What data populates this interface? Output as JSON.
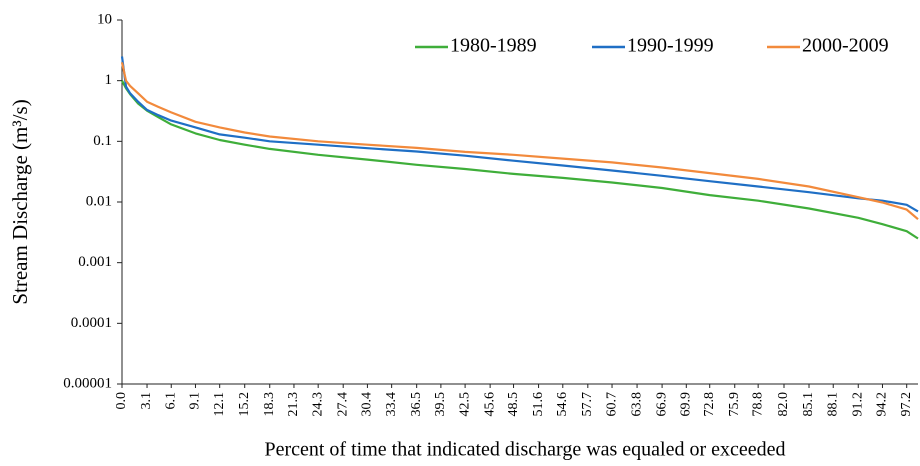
{
  "chart_data": {
    "type": "line",
    "y_label": "Stream Discharge (m³/s)",
    "x_label": "Percent of time that indicated discharge was equaled or exceeded",
    "x": [
      0,
      0.5,
      1,
      2,
      3.1,
      4.5,
      6.1,
      9.1,
      12.1,
      15.2,
      18.3,
      24.3,
      30.4,
      36.5,
      42.5,
      48.5,
      54.6,
      60.7,
      66.9,
      72.8,
      78.8,
      85.1,
      91.2,
      94.2,
      97.2,
      98.6
    ],
    "series": [
      {
        "name": "1980-1989",
        "color": "#3fae3a",
        "values": [
          1.0,
          0.75,
          0.6,
          0.42,
          0.32,
          0.25,
          0.19,
          0.135,
          0.105,
          0.088,
          0.075,
          0.06,
          0.05,
          0.041,
          0.035,
          0.029,
          0.025,
          0.021,
          0.017,
          0.013,
          0.0105,
          0.0078,
          0.0055,
          0.0043,
          0.0033,
          0.0025
        ]
      },
      {
        "name": "1990-1999",
        "color": "#1f6fc5",
        "values": [
          2.5,
          0.8,
          0.62,
          0.45,
          0.33,
          0.27,
          0.22,
          0.17,
          0.13,
          0.115,
          0.1,
          0.088,
          0.077,
          0.068,
          0.058,
          0.048,
          0.04,
          0.033,
          0.027,
          0.022,
          0.018,
          0.0145,
          0.0115,
          0.0105,
          0.009,
          0.007
        ]
      },
      {
        "name": "2000-2009",
        "color": "#f28a3c",
        "values": [
          2.0,
          1.0,
          0.82,
          0.62,
          0.45,
          0.37,
          0.3,
          0.21,
          0.17,
          0.14,
          0.12,
          0.1,
          0.088,
          0.078,
          0.067,
          0.06,
          0.052,
          0.045,
          0.037,
          0.03,
          0.024,
          0.018,
          0.012,
          0.0098,
          0.0075,
          0.0052
        ]
      }
    ],
    "xlim": [
      0,
      98.6
    ],
    "xticks": [
      {
        "value": 0,
        "label": "0.0"
      },
      3.1,
      6.1,
      9.1,
      12.1,
      15.2,
      18.3,
      21.3,
      24.3,
      27.4,
      30.4,
      33.4,
      36.5,
      39.5,
      42.5,
      45.6,
      48.5,
      51.6,
      54.6,
      57.7,
      60.7,
      63.8,
      66.9,
      69.9,
      72.8,
      75.9,
      78.8,
      {
        "value": 82,
        "label": "82.0"
      },
      85.1,
      88.1,
      91.2,
      94.2,
      97.2
    ],
    "ylim": [
      1e-05,
      10
    ],
    "yticks": [
      1e-05,
      0.0001,
      0.001,
      0.01,
      0.1,
      1,
      10
    ],
    "log_y": true,
    "grid": false,
    "legend": "top-right"
  }
}
